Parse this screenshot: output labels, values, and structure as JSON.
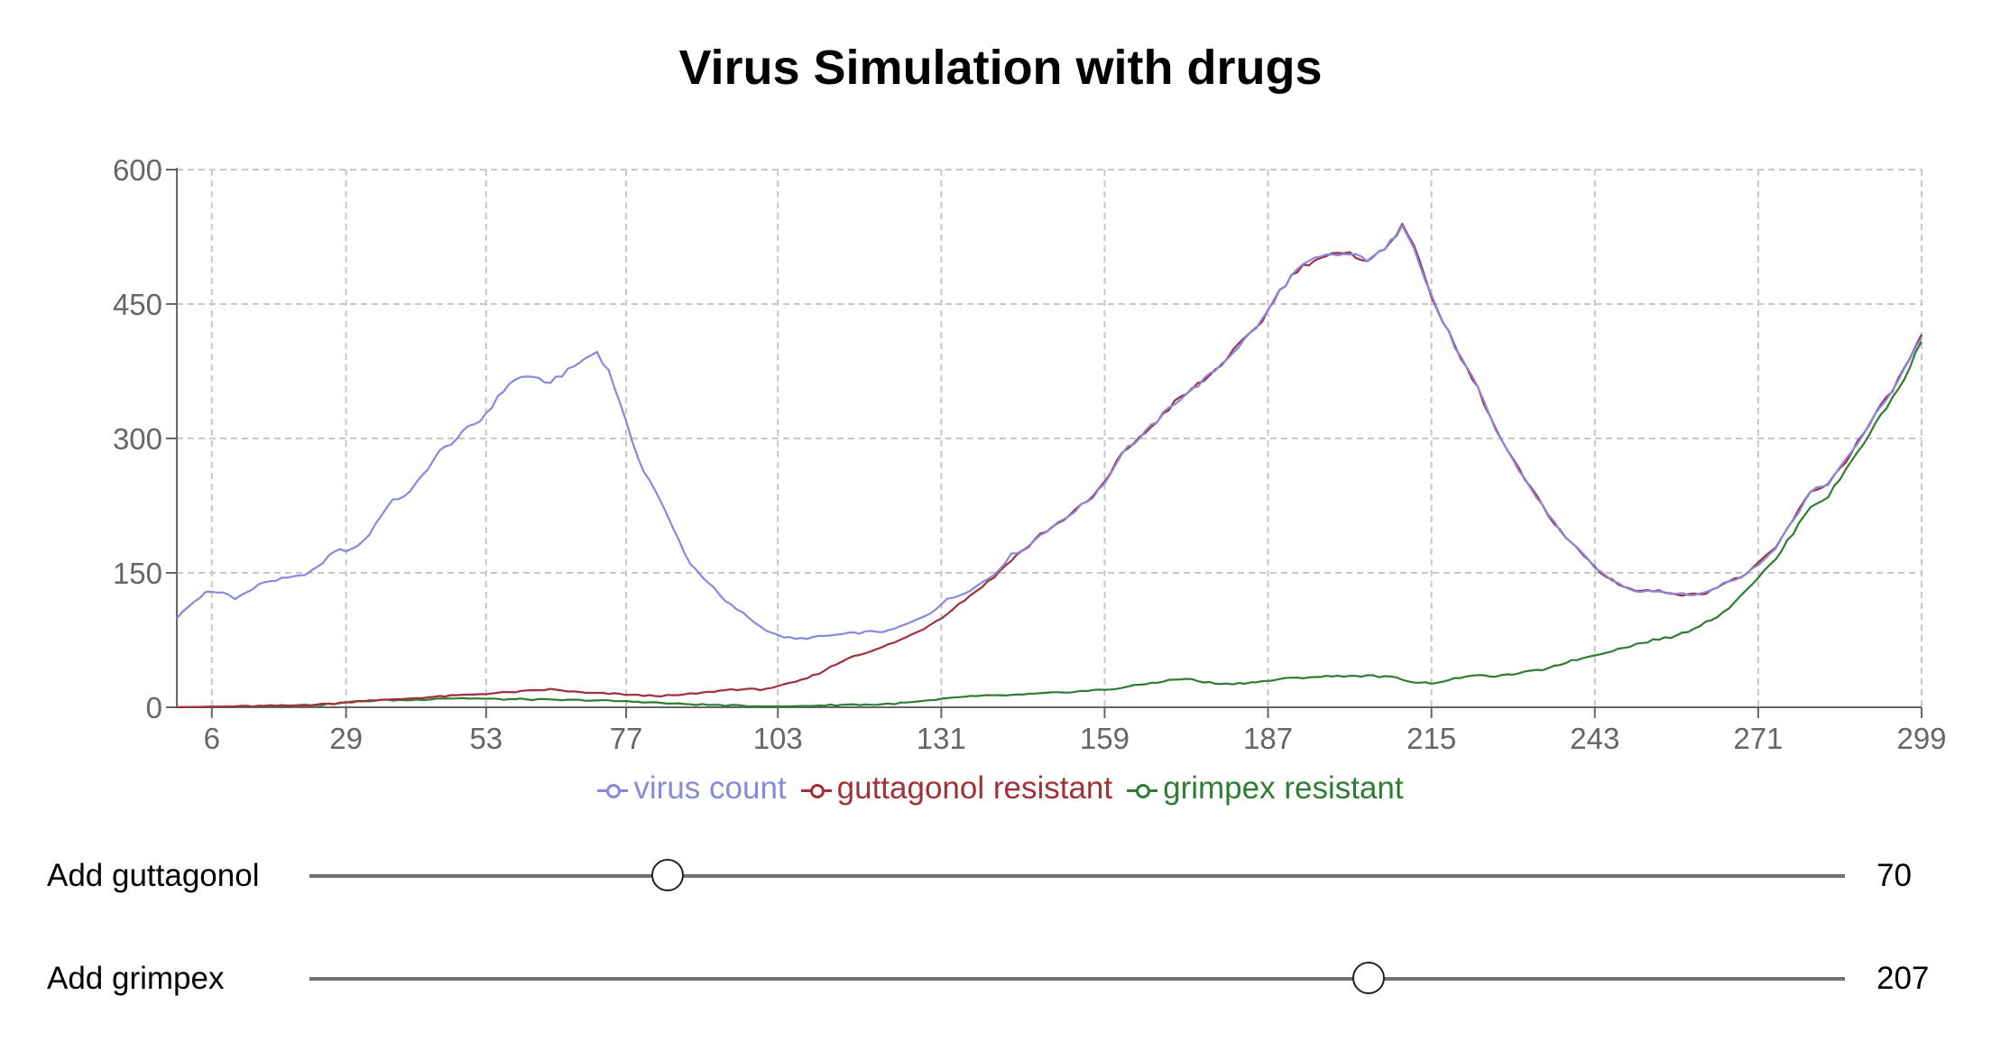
{
  "title": "Virus Simulation with drugs",
  "chart_data": {
    "type": "line",
    "title": "Virus Simulation with drugs",
    "xlabel": "",
    "ylabel": "",
    "xlim": [
      0,
      299
    ],
    "ylim": [
      0,
      600
    ],
    "x_ticks": [
      6,
      29,
      53,
      77,
      103,
      131,
      159,
      187,
      215,
      243,
      271,
      299
    ],
    "y_ticks": [
      0,
      150,
      300,
      450,
      600
    ],
    "grid": true,
    "legend_position": "bottom-center",
    "series": [
      {
        "name": "virus count",
        "color": "#8888dd",
        "points": [
          [
            0,
            100
          ],
          [
            3,
            118
          ],
          [
            5,
            128
          ],
          [
            8,
            128
          ],
          [
            10,
            122
          ],
          [
            12,
            128
          ],
          [
            15,
            140
          ],
          [
            18,
            143
          ],
          [
            21,
            146
          ],
          [
            24,
            155
          ],
          [
            27,
            175
          ],
          [
            29,
            175
          ],
          [
            31,
            180
          ],
          [
            33,
            193
          ],
          [
            35,
            215
          ],
          [
            37,
            230
          ],
          [
            40,
            240
          ],
          [
            42,
            258
          ],
          [
            45,
            285
          ],
          [
            48,
            300
          ],
          [
            50,
            312
          ],
          [
            52,
            320
          ],
          [
            55,
            345
          ],
          [
            57,
            362
          ],
          [
            59,
            368
          ],
          [
            61,
            370
          ],
          [
            63,
            360
          ],
          [
            65,
            368
          ],
          [
            67,
            375
          ],
          [
            69,
            385
          ],
          [
            71,
            393
          ],
          [
            72,
            397
          ],
          [
            74,
            375
          ],
          [
            76,
            340
          ],
          [
            78,
            295
          ],
          [
            80,
            265
          ],
          [
            82,
            242
          ],
          [
            85,
            200
          ],
          [
            88,
            160
          ],
          [
            91,
            140
          ],
          [
            94,
            118
          ],
          [
            97,
            105
          ],
          [
            100,
            90
          ],
          [
            103,
            80
          ],
          [
            106,
            76
          ],
          [
            109,
            78
          ],
          [
            112,
            80
          ],
          [
            115,
            82
          ],
          [
            118,
            84
          ],
          [
            122,
            85
          ],
          [
            126,
            95
          ],
          [
            129,
            105
          ],
          [
            132,
            120
          ],
          [
            134,
            125
          ],
          [
            137,
            135
          ],
          [
            140,
            148
          ],
          [
            143,
            170
          ],
          [
            146,
            180
          ],
          [
            148,
            193
          ],
          [
            151,
            205
          ],
          [
            154,
            220
          ],
          [
            157,
            235
          ],
          [
            160,
            260
          ],
          [
            162,
            285
          ],
          [
            165,
            300
          ],
          [
            168,
            320
          ],
          [
            171,
            340
          ],
          [
            174,
            355
          ],
          [
            177,
            370
          ],
          [
            180,
            390
          ],
          [
            183,
            410
          ],
          [
            186,
            432
          ],
          [
            189,
            465
          ],
          [
            192,
            488
          ],
          [
            195,
            500
          ],
          [
            198,
            505
          ],
          [
            201,
            505
          ],
          [
            204,
            500
          ],
          [
            207,
            510
          ],
          [
            209,
            528
          ],
          [
            210,
            540
          ],
          [
            212,
            515
          ],
          [
            214,
            475
          ],
          [
            217,
            430
          ],
          [
            220,
            390
          ],
          [
            223,
            355
          ],
          [
            226,
            310
          ],
          [
            229,
            275
          ],
          [
            232,
            245
          ],
          [
            235,
            215
          ],
          [
            238,
            190
          ],
          [
            241,
            170
          ],
          [
            244,
            150
          ],
          [
            247,
            138
          ],
          [
            250,
            130
          ],
          [
            253,
            130
          ],
          [
            256,
            128
          ],
          [
            259,
            125
          ],
          [
            262,
            128
          ],
          [
            265,
            138
          ],
          [
            268,
            145
          ],
          [
            271,
            160
          ],
          [
            274,
            178
          ],
          [
            277,
            210
          ],
          [
            280,
            240
          ],
          [
            283,
            250
          ],
          [
            286,
            275
          ],
          [
            289,
            305
          ],
          [
            292,
            335
          ],
          [
            295,
            365
          ],
          [
            297,
            390
          ],
          [
            299,
            412
          ]
        ]
      },
      {
        "name": "guttagonol resistant",
        "color": "#a0303a",
        "points": [
          [
            0,
            0
          ],
          [
            10,
            1
          ],
          [
            20,
            2
          ],
          [
            27,
            4
          ],
          [
            30,
            6
          ],
          [
            33,
            8
          ],
          [
            36,
            8
          ],
          [
            40,
            10
          ],
          [
            45,
            12
          ],
          [
            50,
            14
          ],
          [
            55,
            16
          ],
          [
            60,
            18
          ],
          [
            64,
            20
          ],
          [
            67,
            18
          ],
          [
            70,
            16
          ],
          [
            75,
            15
          ],
          [
            80,
            13
          ],
          [
            85,
            13
          ],
          [
            90,
            16
          ],
          [
            95,
            20
          ],
          [
            100,
            20
          ],
          [
            103,
            23
          ],
          [
            107,
            30
          ],
          [
            110,
            38
          ],
          [
            113,
            48
          ],
          [
            116,
            58
          ],
          [
            119,
            62
          ],
          [
            122,
            70
          ],
          [
            125,
            78
          ],
          [
            128,
            88
          ],
          [
            131,
            100
          ],
          [
            134,
            115
          ],
          [
            137,
            130
          ],
          [
            140,
            145
          ],
          [
            143,
            165
          ],
          [
            146,
            180
          ],
          [
            148,
            193
          ],
          [
            151,
            205
          ],
          [
            154,
            220
          ],
          [
            157,
            235
          ],
          [
            160,
            260
          ],
          [
            162,
            285
          ],
          [
            165,
            300
          ],
          [
            168,
            320
          ],
          [
            171,
            340
          ],
          [
            174,
            355
          ],
          [
            177,
            370
          ],
          [
            180,
            390
          ],
          [
            183,
            410
          ],
          [
            186,
            432
          ],
          [
            189,
            465
          ],
          [
            192,
            488
          ],
          [
            195,
            500
          ],
          [
            198,
            505
          ],
          [
            201,
            505
          ],
          [
            204,
            500
          ],
          [
            207,
            510
          ],
          [
            209,
            528
          ],
          [
            210,
            542
          ],
          [
            212,
            515
          ],
          [
            214,
            475
          ],
          [
            217,
            430
          ],
          [
            220,
            390
          ],
          [
            223,
            355
          ],
          [
            226,
            310
          ],
          [
            229,
            275
          ],
          [
            232,
            245
          ],
          [
            235,
            215
          ],
          [
            238,
            190
          ],
          [
            241,
            170
          ],
          [
            244,
            150
          ],
          [
            247,
            138
          ],
          [
            250,
            130
          ],
          [
            253,
            130
          ],
          [
            256,
            128
          ],
          [
            259,
            125
          ],
          [
            262,
            128
          ],
          [
            265,
            138
          ],
          [
            268,
            145
          ],
          [
            271,
            160
          ],
          [
            274,
            178
          ],
          [
            277,
            210
          ],
          [
            280,
            240
          ],
          [
            283,
            250
          ],
          [
            286,
            275
          ],
          [
            289,
            305
          ],
          [
            292,
            335
          ],
          [
            295,
            365
          ],
          [
            297,
            390
          ],
          [
            299,
            416
          ]
        ]
      },
      {
        "name": "grimpex resistant",
        "color": "#2e7d32",
        "points": [
          [
            0,
            0
          ],
          [
            10,
            1
          ],
          [
            20,
            2
          ],
          [
            25,
            3
          ],
          [
            30,
            6
          ],
          [
            35,
            8
          ],
          [
            40,
            8
          ],
          [
            45,
            10
          ],
          [
            50,
            10
          ],
          [
            55,
            9
          ],
          [
            60,
            9
          ],
          [
            65,
            8
          ],
          [
            70,
            8
          ],
          [
            75,
            7
          ],
          [
            80,
            6
          ],
          [
            85,
            4
          ],
          [
            90,
            3
          ],
          [
            95,
            2
          ],
          [
            100,
            1
          ],
          [
            105,
            1
          ],
          [
            110,
            2
          ],
          [
            115,
            3
          ],
          [
            120,
            3
          ],
          [
            125,
            5
          ],
          [
            130,
            8
          ],
          [
            135,
            12
          ],
          [
            140,
            13
          ],
          [
            145,
            14
          ],
          [
            150,
            16
          ],
          [
            155,
            18
          ],
          [
            160,
            20
          ],
          [
            165,
            25
          ],
          [
            170,
            30
          ],
          [
            173,
            32
          ],
          [
            176,
            28
          ],
          [
            180,
            26
          ],
          [
            185,
            28
          ],
          [
            190,
            32
          ],
          [
            195,
            34
          ],
          [
            200,
            35
          ],
          [
            205,
            35
          ],
          [
            209,
            33
          ],
          [
            212,
            28
          ],
          [
            215,
            27
          ],
          [
            218,
            30
          ],
          [
            221,
            35
          ],
          [
            224,
            35
          ],
          [
            227,
            35
          ],
          [
            230,
            38
          ],
          [
            234,
            42
          ],
          [
            238,
            50
          ],
          [
            241,
            55
          ],
          [
            244,
            60
          ],
          [
            247,
            65
          ],
          [
            250,
            70
          ],
          [
            253,
            75
          ],
          [
            256,
            78
          ],
          [
            259,
            85
          ],
          [
            262,
            95
          ],
          [
            265,
            105
          ],
          [
            268,
            125
          ],
          [
            271,
            145
          ],
          [
            274,
            165
          ],
          [
            277,
            195
          ],
          [
            280,
            225
          ],
          [
            283,
            235
          ],
          [
            286,
            265
          ],
          [
            289,
            295
          ],
          [
            292,
            325
          ],
          [
            295,
            355
          ],
          [
            297,
            380
          ],
          [
            299,
            408
          ]
        ]
      }
    ]
  },
  "controls": [
    {
      "label": "Add guttagonol",
      "value": "70",
      "min": 0,
      "max": 300,
      "position": 70
    },
    {
      "label": "Add grimpex",
      "value": "207",
      "min": 0,
      "max": 300,
      "position": 207
    }
  ]
}
